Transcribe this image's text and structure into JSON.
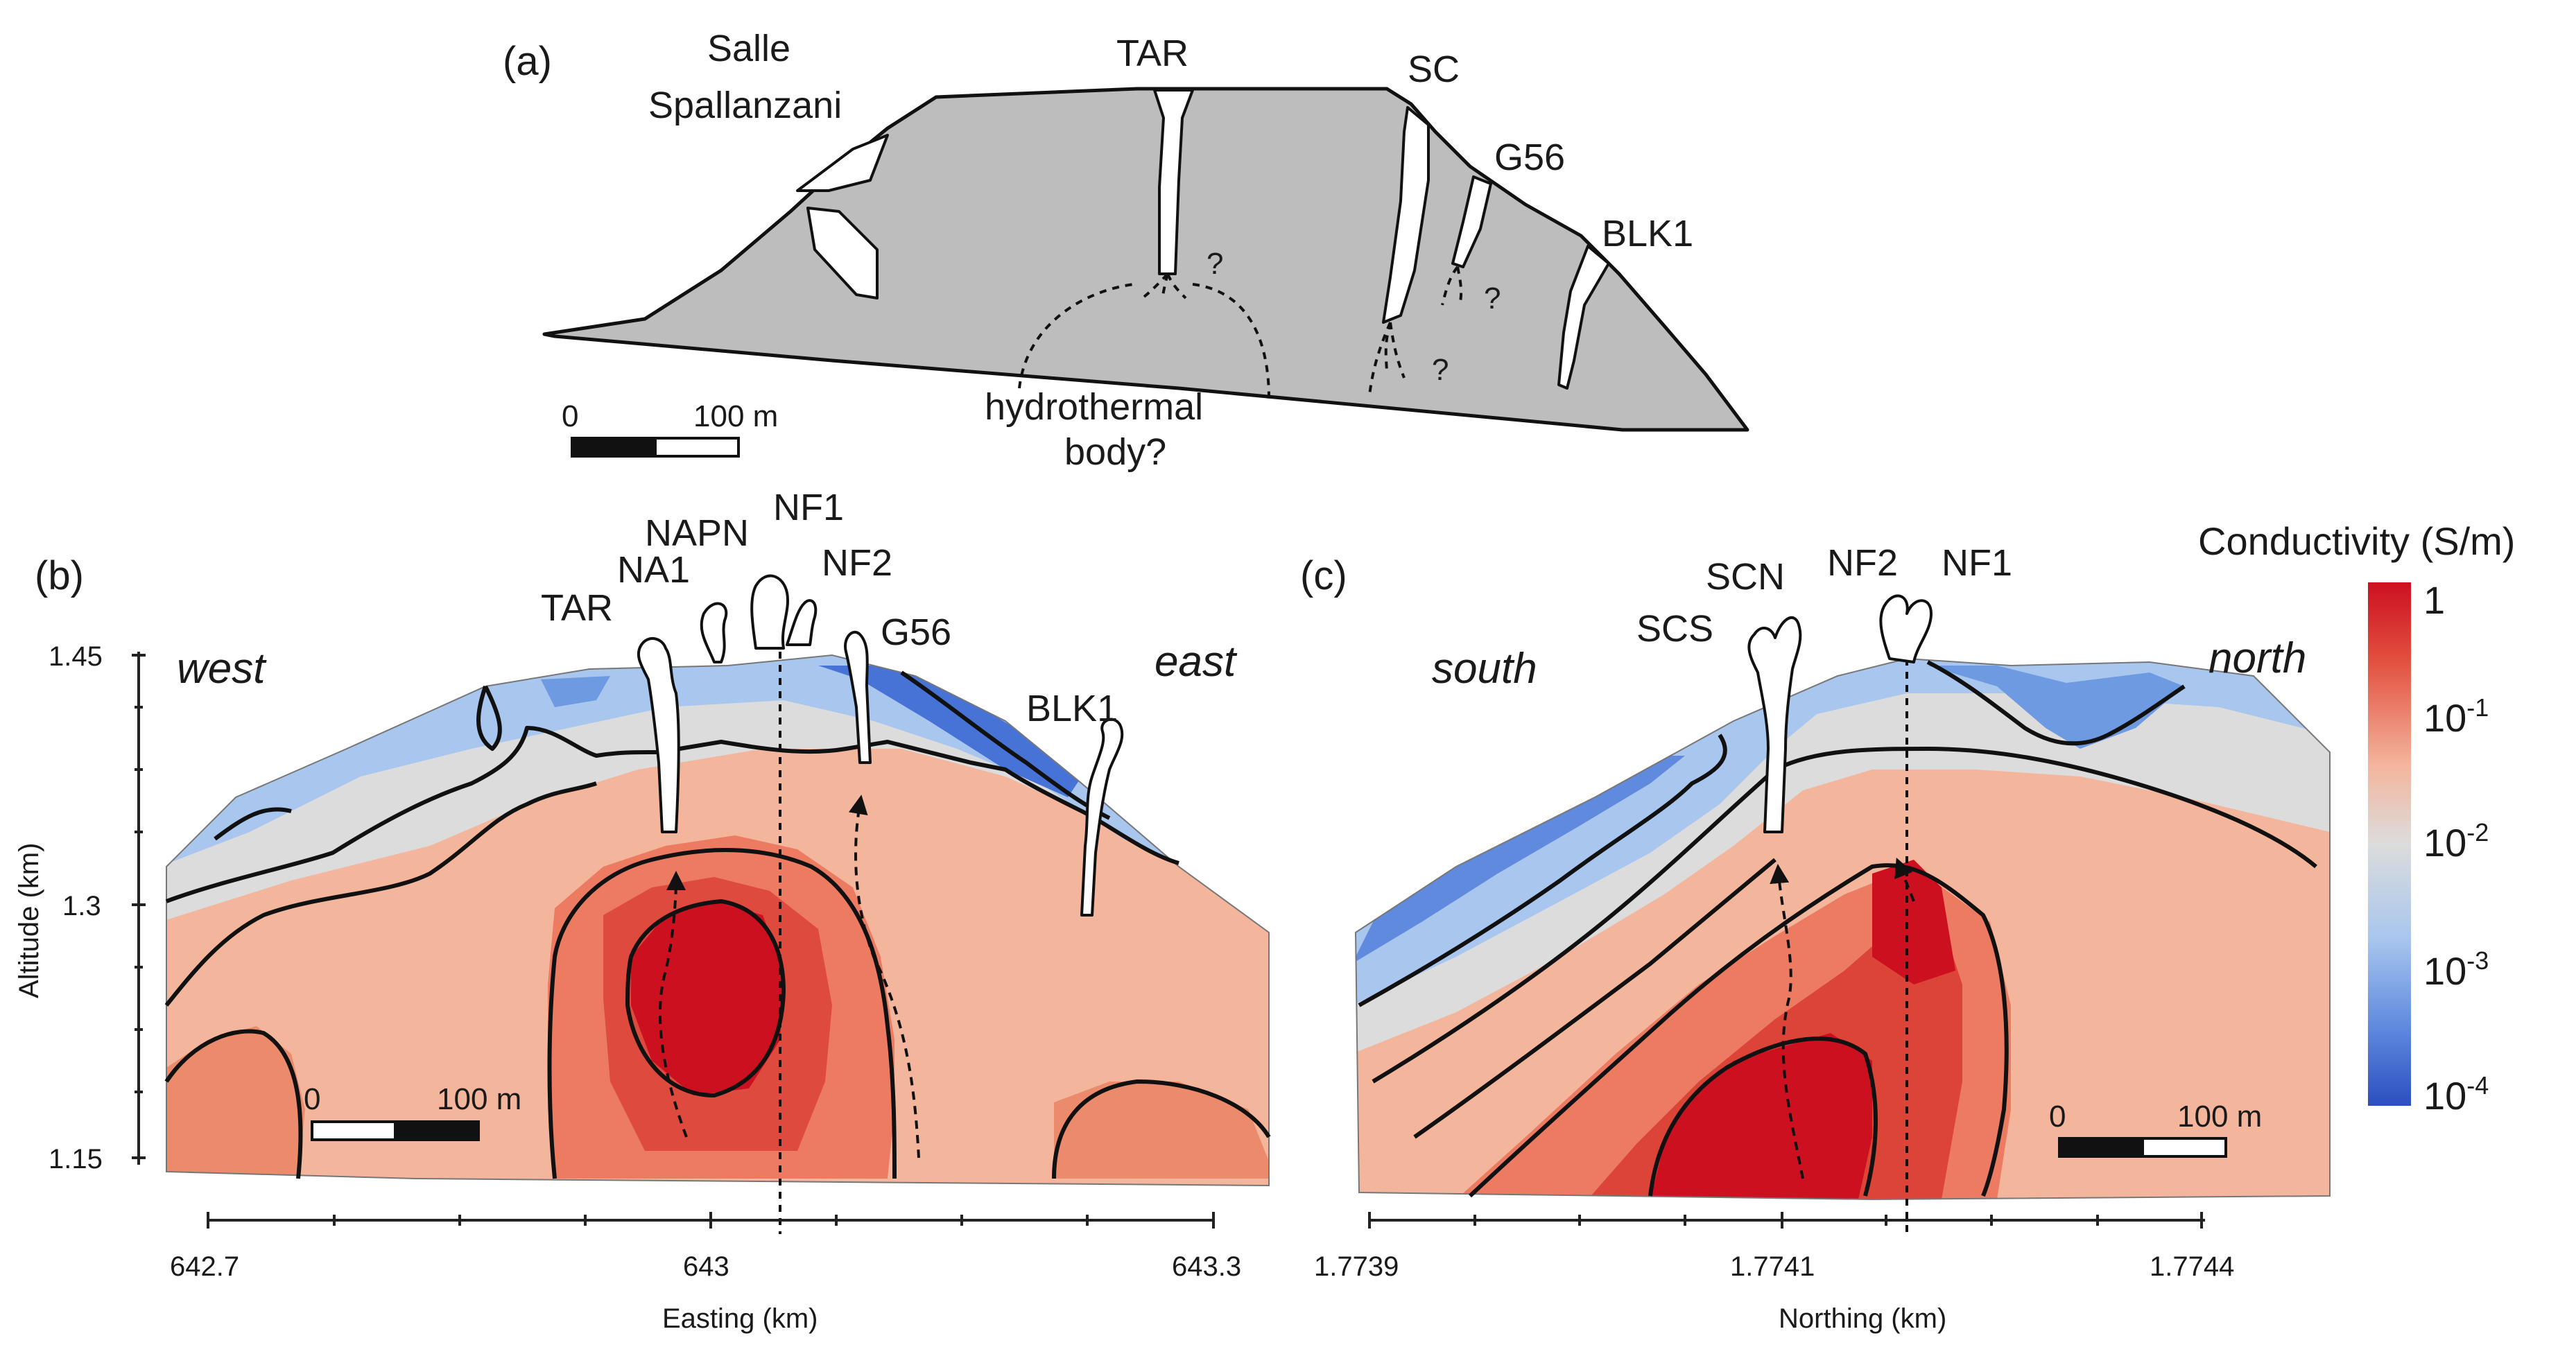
{
  "panels": {
    "a": {
      "label": "(a)",
      "sites": {
        "salle_line1": "Salle",
        "salle_line2": "Spallanzani",
        "tar": "TAR",
        "sc": "SC",
        "g56": "G56",
        "blk1": "BLK1"
      },
      "question_mark": "?",
      "hydrothermal_line1": "hydrothermal",
      "hydrothermal_line2": "body?",
      "scale_zero": "0",
      "scale_length": "100 m"
    },
    "b": {
      "label": "(b)",
      "dir_left": "west",
      "dir_right": "east",
      "vents": {
        "tar": "TAR",
        "na1": "NA1",
        "napn": "NAPN",
        "nf1": "NF1",
        "nf2": "NF2",
        "g56": "G56",
        "blk1": "BLK1"
      },
      "ylabel": "Altitude (km)",
      "yticks": [
        "1.45",
        "1.3",
        "1.15"
      ],
      "xlabel": "Easting (km)",
      "xticks": [
        "642.7",
        "643",
        "643.3"
      ],
      "scale_zero": "0",
      "scale_length": "100 m"
    },
    "c": {
      "label": "(c)",
      "dir_left": "south",
      "dir_right": "north",
      "vents": {
        "scs": "SCS",
        "scn": "SCN",
        "nf2": "NF2",
        "nf1": "NF1"
      },
      "xlabel": "Northing (km)",
      "xticks": [
        "1.7739",
        "1.7741",
        "1.7744"
      ],
      "scale_zero": "0",
      "scale_length": "100 m"
    }
  },
  "colorbar": {
    "title": "Conductivity (S/m)",
    "ticks": [
      {
        "base": "1",
        "exp": ""
      },
      {
        "base": "10",
        "exp": "-1"
      },
      {
        "base": "10",
        "exp": "-2"
      },
      {
        "base": "10",
        "exp": "-3"
      },
      {
        "base": "10",
        "exp": "-4"
      }
    ],
    "colors": [
      "#cc1020",
      "#e8684f",
      "#f4b59d",
      "#dcdcdc",
      "#a9c6ee",
      "#6e9ae2",
      "#2b4fc0"
    ]
  },
  "colors": {
    "cross_section_fill": "#bdbdbd",
    "high_conductivity": "#cc1020",
    "low_conductivity": "#2b4fc0"
  }
}
